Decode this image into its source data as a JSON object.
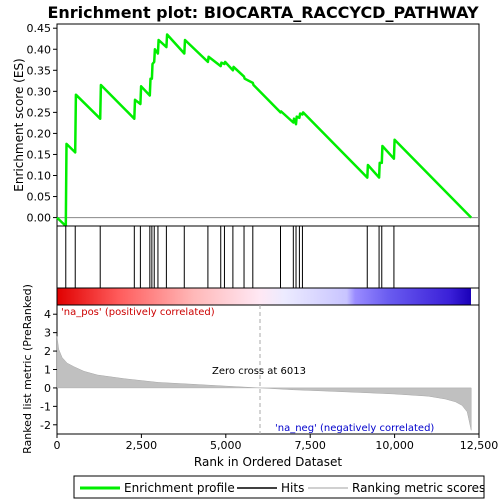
{
  "chart_data": {
    "type": "line",
    "title": "Enrichment plot: BIOCARTA_RACCYCD_PATHWAY",
    "x_axis": {
      "label": "Rank in Ordered Dataset",
      "range": [
        0,
        12500
      ],
      "ticks": [
        "0",
        "2,500",
        "5,000",
        "7,500",
        "10,000",
        "12,500"
      ]
    },
    "es_panel": {
      "ylabel": "Enrichment score (ES)",
      "ylim": [
        -0.02,
        0.46
      ],
      "yticks": [
        "0.00",
        "0.05",
        "0.10",
        "0.15",
        "0.20",
        "0.25",
        "0.30",
        "0.35",
        "0.40",
        "0.45"
      ],
      "series_color": "#00ee00",
      "enrichment_profile": {
        "x": [
          0,
          260,
          280,
          540,
          560,
          1280,
          1300,
          2290,
          2310,
          2470,
          2490,
          2750,
          2770,
          2810,
          2830,
          2880,
          2900,
          2990,
          3010,
          3240,
          3260,
          3770,
          3790,
          4470,
          4490,
          4850,
          4870,
          4960,
          4980,
          5210,
          5230,
          5540,
          5560,
          5800,
          5820,
          6620,
          6640,
          7000,
          7020,
          7080,
          7100,
          7180,
          7200,
          7270,
          7290,
          9190,
          9210,
          9540,
          9560,
          9620,
          9640,
          9980,
          10000,
          12270
        ],
        "y": [
          0.0,
          -0.02,
          0.175,
          0.155,
          0.292,
          0.235,
          0.315,
          0.235,
          0.28,
          0.27,
          0.312,
          0.29,
          0.33,
          0.33,
          0.365,
          0.37,
          0.4,
          0.39,
          0.422,
          0.405,
          0.435,
          0.39,
          0.422,
          0.37,
          0.382,
          0.36,
          0.368,
          0.365,
          0.37,
          0.35,
          0.358,
          0.335,
          0.33,
          0.32,
          0.315,
          0.25,
          0.252,
          0.226,
          0.235,
          0.222,
          0.24,
          0.237,
          0.247,
          0.245,
          0.25,
          0.095,
          0.125,
          0.095,
          0.13,
          0.13,
          0.17,
          0.14,
          0.185,
          0.0
        ]
      },
      "hits": [
        260,
        540,
        1280,
        2290,
        2470,
        2750,
        2810,
        2880,
        2990,
        3240,
        3770,
        4470,
        4850,
        4960,
        5210,
        5540,
        5800,
        6620,
        7000,
        7080,
        7180,
        7270,
        9190,
        9540,
        9620,
        9980
      ]
    },
    "metric_panel": {
      "ylabel": "Ranked list metric (PreRanked)",
      "ylim": [
        -2.5,
        4.5
      ],
      "yticks": [
        "-2",
        "-1",
        "0",
        "1",
        "2",
        "3",
        "4"
      ],
      "fill_color": "#c0c0c0",
      "ranked_metric": {
        "x": [
          0,
          50,
          150,
          300,
          500,
          800,
          1200,
          2000,
          3000,
          4000,
          5000,
          6013,
          7000,
          8000,
          9000,
          10000,
          11000,
          11500,
          11800,
          12000,
          12150,
          12270
        ],
        "y": [
          2.8,
          2.1,
          1.65,
          1.35,
          1.15,
          0.9,
          0.7,
          0.5,
          0.3,
          0.2,
          0.1,
          0.0,
          -0.1,
          -0.17,
          -0.25,
          -0.33,
          -0.45,
          -0.6,
          -0.75,
          -0.95,
          -1.3,
          -2.3
        ]
      },
      "zero_cross_label": "Zero cross at 6013",
      "zero_cross": 6013,
      "pos_label": "'na_pos' (positively correlated)",
      "neg_label": "'na_neg' (negatively correlated)",
      "pos_color": "#cc0000",
      "neg_color": "#0000cc"
    },
    "legend": {
      "placement": "bottom",
      "items": [
        {
          "label": "Enrichment profile",
          "color": "#00ee00"
        },
        {
          "label": "Hits",
          "color": "#000000"
        },
        {
          "label": "Ranking metric scores",
          "color": "#c0c0c0"
        }
      ]
    }
  }
}
